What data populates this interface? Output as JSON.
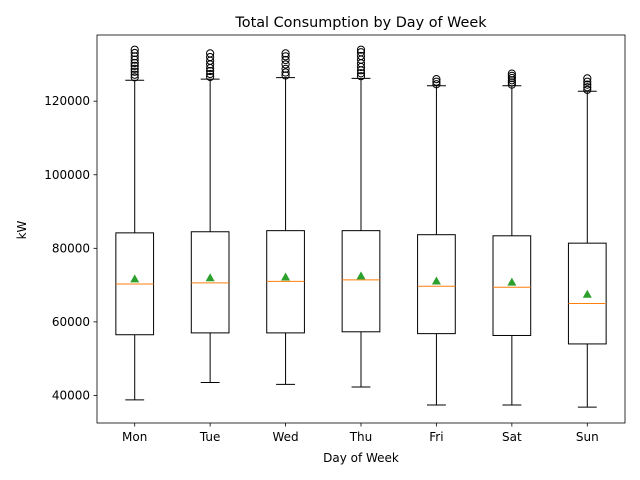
{
  "chart_data": {
    "type": "box",
    "title": "Total Consumption by Day of Week",
    "xlabel": "Day of Week",
    "ylabel": "kW",
    "ylim": [
      32500,
      138000
    ],
    "yticks": [
      40000,
      60000,
      80000,
      100000,
      120000
    ],
    "ytick_labels": [
      "40000",
      "60000",
      "80000",
      "100000",
      "120000"
    ],
    "grid": false,
    "categories": [
      "Mon",
      "Tue",
      "Wed",
      "Thu",
      "Fri",
      "Sat",
      "Sun"
    ],
    "boxes": [
      {
        "whisker_low": 38800,
        "q1": 56500,
        "median": 70300,
        "q3": 84200,
        "whisker_high": 125700,
        "mean": 71700,
        "outliers": [
          126500,
          127200,
          128000,
          128800,
          129600,
          130400,
          131300,
          132200,
          133100,
          134000
        ]
      },
      {
        "whisker_low": 43500,
        "q1": 57000,
        "median": 70600,
        "q3": 84500,
        "whisker_high": 126000,
        "mean": 72000,
        "outliers": [
          126600,
          127400,
          128200,
          129000,
          130000,
          131000,
          132000,
          133000
        ]
      },
      {
        "whisker_low": 43000,
        "q1": 57000,
        "median": 71000,
        "q3": 84800,
        "whisker_high": 126400,
        "mean": 72200,
        "outliers": [
          127000,
          127800,
          128800,
          130000,
          131200,
          132200,
          133000
        ]
      },
      {
        "whisker_low": 42300,
        "q1": 57300,
        "median": 71400,
        "q3": 84800,
        "whisker_high": 126200,
        "mean": 72500,
        "outliers": [
          126800,
          127600,
          128400,
          129300,
          130300,
          131300,
          132300,
          133300,
          134000
        ]
      },
      {
        "whisker_low": 37400,
        "q1": 56800,
        "median": 69700,
        "q3": 83700,
        "whisker_high": 124200,
        "mean": 71100,
        "outliers": [
          124600,
          125300,
          126000
        ]
      },
      {
        "whisker_low": 37400,
        "q1": 56300,
        "median": 69400,
        "q3": 83400,
        "whisker_high": 124200,
        "mean": 70800,
        "outliers": [
          124500,
          125100,
          125700,
          126300,
          126900,
          127500
        ]
      },
      {
        "whisker_low": 36800,
        "q1": 54000,
        "median": 65000,
        "q3": 81400,
        "whisker_high": 122700,
        "mean": 67500,
        "outliers": [
          123100,
          123800,
          124500,
          125300,
          126200
        ]
      }
    ],
    "colors": {
      "box": "#000000",
      "median": "#ff7f0e",
      "mean": "#2ca02c"
    }
  }
}
